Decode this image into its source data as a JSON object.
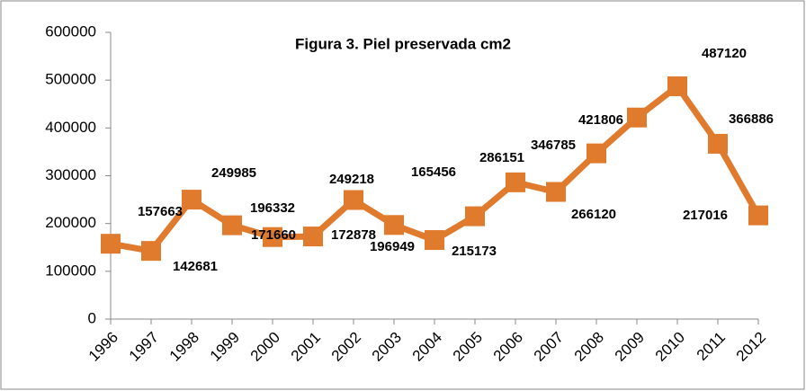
{
  "chart_data": {
    "type": "line",
    "title": "Figura 3. Piel preservada cm2",
    "categories": [
      "1996",
      "1997",
      "1998",
      "1999",
      "2000",
      "2001",
      "2002",
      "2003",
      "2004",
      "2005",
      "2006",
      "2007",
      "2008",
      "2009",
      "2010",
      "2011",
      "2012"
    ],
    "values": [
      157663,
      142681,
      249985,
      196332,
      171660,
      172878,
      249218,
      196949,
      165456,
      215173,
      286151,
      266120,
      346785,
      421806,
      487120,
      366886,
      217016
    ],
    "color": "#e07b2e",
    "ylim": [
      0,
      600000
    ],
    "yticks": [
      0,
      100000,
      200000,
      300000,
      400000,
      500000,
      600000
    ],
    "grid": false
  }
}
